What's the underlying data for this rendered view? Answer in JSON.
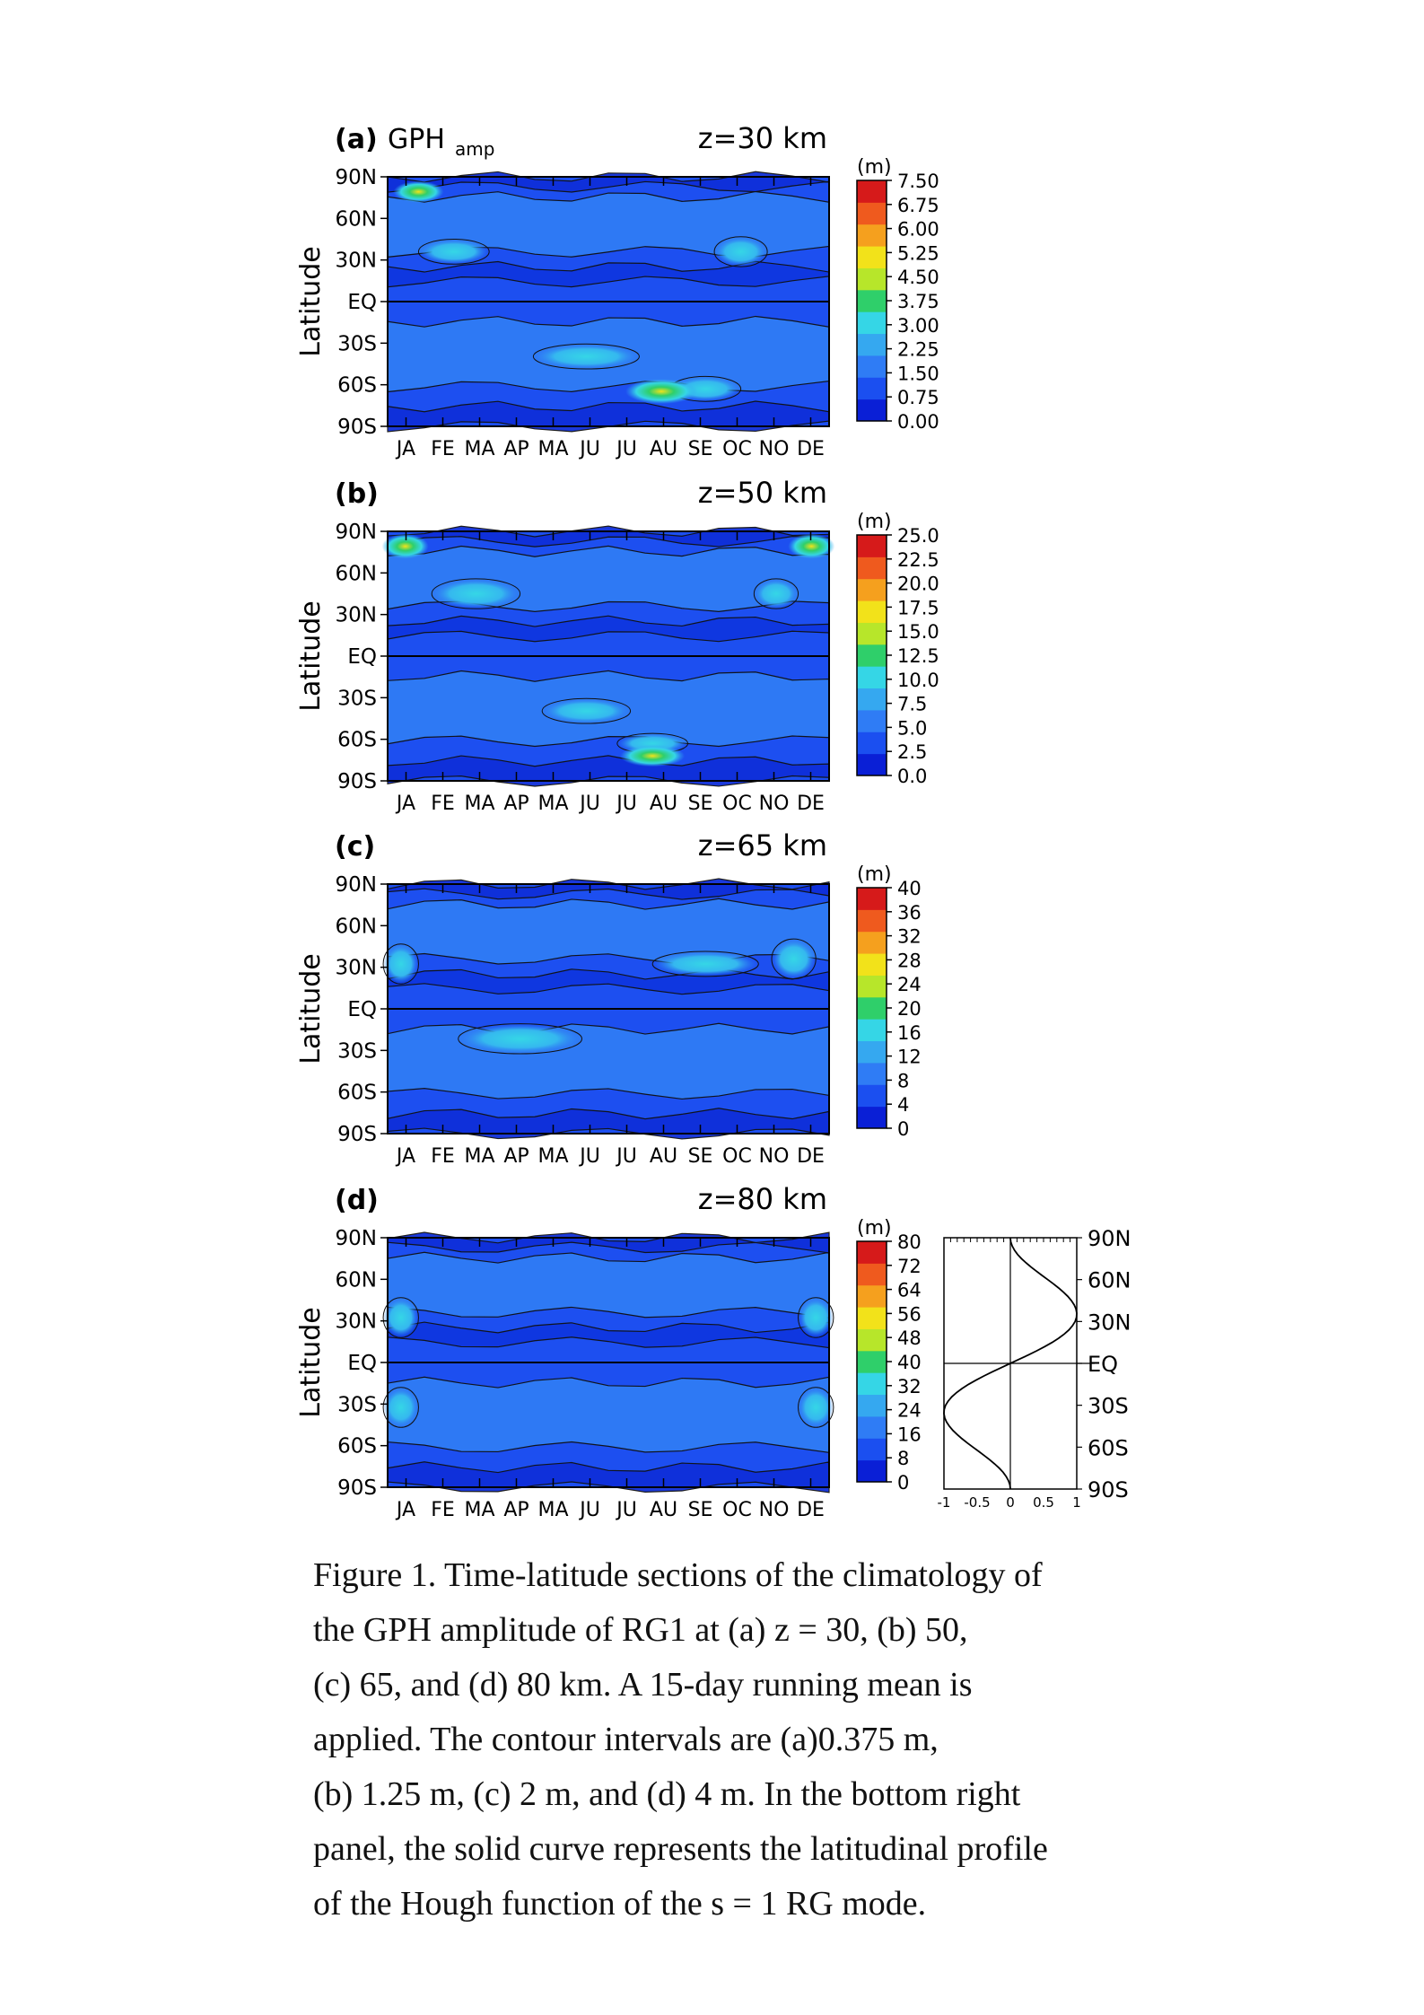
{
  "figure": {
    "months": [
      "JA",
      "FE",
      "MA",
      "AP",
      "MA",
      "JU",
      "JU",
      "AU",
      "SE",
      "OC",
      "NO",
      "DE"
    ],
    "lat_labels": [
      "90N",
      "60N",
      "30N",
      "EQ",
      "30S",
      "60S",
      "90S"
    ],
    "ylabel": "Latitude",
    "unit": "(m)",
    "panels": [
      {
        "id": "a",
        "label": "(a)",
        "title_main": "GPH",
        "title_sub": "amp",
        "height": "z=30 km",
        "colorbar": [
          "7.50",
          "6.75",
          "6.00",
          "5.25",
          "4.50",
          "3.75",
          "3.00",
          "2.25",
          "1.50",
          "0.75",
          "0.00"
        ]
      },
      {
        "id": "b",
        "label": "(b)",
        "title_main": "",
        "title_sub": "",
        "height": "z=50 km",
        "colorbar": [
          "25.0",
          "22.5",
          "20.0",
          "17.5",
          "15.0",
          "12.5",
          "10.0",
          "7.5",
          "5.0",
          "2.5",
          "0.0"
        ]
      },
      {
        "id": "c",
        "label": "(c)",
        "title_main": "",
        "title_sub": "",
        "height": "z=65 km",
        "colorbar": [
          "40",
          "36",
          "32",
          "28",
          "24",
          "20",
          "16",
          "12",
          "8",
          "4",
          "0"
        ]
      },
      {
        "id": "d",
        "label": "(d)",
        "title_main": "",
        "title_sub": "",
        "height": "z=80 km",
        "colorbar": [
          "80",
          "72",
          "64",
          "56",
          "48",
          "40",
          "32",
          "24",
          "16",
          "8",
          "0"
        ]
      }
    ],
    "colorbar_colors": [
      "#0a1fd6",
      "#1b4ff0",
      "#2f7cf5",
      "#35a8f0",
      "#35d6e6",
      "#2fcf6a",
      "#b7e62a",
      "#f2e21a",
      "#f5a01e",
      "#ef5a1e",
      "#d61a1a"
    ],
    "hough": {
      "x_ticks": [
        "-1",
        "-0.5",
        "0",
        "0.5",
        "1"
      ],
      "lat_labels": [
        "90N",
        "60N",
        "30N",
        "EQ",
        "30S",
        "60S",
        "90S"
      ]
    }
  },
  "caption": {
    "lines": [
      "Figure 1. Time-latitude sections of the climatology of",
      "the GPH amplitude of RG1 at (a) z = 30, (b) 50,",
      "(c) 65, and (d) 80 km. A 15-day running mean is",
      "applied. The contour intervals are (a)0.375 m,",
      "(b) 1.25 m, (c) 2 m, and (d) 4 m. In the bottom right",
      "panel, the solid curve represents the latitudinal profile",
      "of the Hough function of the s = 1 RG mode."
    ]
  }
}
